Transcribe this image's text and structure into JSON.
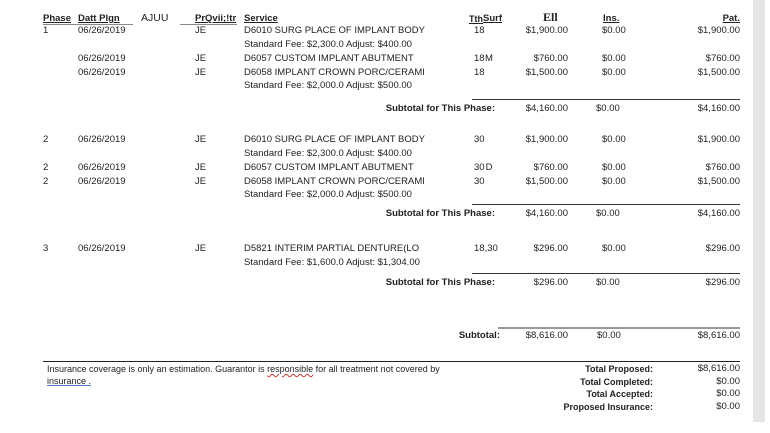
{
  "header": {
    "phase": "Phase",
    "date": "Datt Plgn",
    "extra": "AJUU",
    "provider": "PrQvii;!tr",
    "service": "Service",
    "tooth": "Tth",
    "surf": "Surf",
    "fee": "Ell",
    "ins": "Ins.",
    "pat": "Pat."
  },
  "phases": [
    {
      "rows": [
        {
          "phase": "1",
          "date": "06/26/2019",
          "prov": "JE",
          "service": "D6010 SURG PLACE OF IMPLANT BODY",
          "tooth": "18",
          "surf": "",
          "fee": "$1,900.00",
          "ins": "$0.00",
          "pat": "$1,900.00",
          "note": "Standard Fee: $2,300.0 Adjust: $400.00"
        },
        {
          "phase": "",
          "date": "06/26/2019",
          "prov": "JE",
          "service": "D6057 CUSTOM IMPLANT ABUTMENT",
          "tooth": "18",
          "surf": "M",
          "fee": "$760.00",
          "ins": "$0.00",
          "pat": "$760.00",
          "note": ""
        },
        {
          "phase": "",
          "date": "06/26/2019",
          "prov": "JE",
          "service": "D6058 IMPLANT CROWN PORC/CERAMI",
          "tooth": "18",
          "surf": "",
          "fee": "$1,500.00",
          "ins": "$0.00",
          "pat": "$1,500.00",
          "note": "Standard Fee: $2,000.0 Adjust: $500.00"
        }
      ],
      "subtotal_label": "Subtotal for This Phase:",
      "subtotal": {
        "fee": "$4,160.00",
        "ins": "$0.00",
        "pat": "$4,160.00"
      }
    },
    {
      "rows": [
        {
          "phase": "2",
          "date": "06/26/2019",
          "prov": "JE",
          "service": "D6010 SURG PLACE OF IMPLANT BODY",
          "tooth": "30",
          "surf": "",
          "fee": "$1,900.00",
          "ins": "$0.00",
          "pat": "$1,900.00",
          "note": "Standard Fee: $2,300.0 Adjust: $400.00"
        },
        {
          "phase": "2",
          "date": "06/26/2019",
          "prov": "JE",
          "service": "D6057 CUSTOM IMPLANT ABUTMENT",
          "tooth": "30",
          "surf": "D",
          "fee": "$760.00",
          "ins": "$0.00",
          "pat": "$760.00",
          "note": ""
        },
        {
          "phase": "2",
          "date": "06/26/2019",
          "prov": "JE",
          "service": "D6058 IMPLANT CROWN PORC/CERAMI",
          "tooth": "30",
          "surf": "",
          "fee": "$1,500.00",
          "ins": "$0.00",
          "pat": "$1,500.00",
          "note": "Standard Fee: $2,000.0 Adjust: $500.00"
        }
      ],
      "subtotal_label": "Subtotal for This Phase:",
      "subtotal": {
        "fee": "$4,160.00",
        "ins": "$0.00",
        "pat": "$4,160.00"
      }
    },
    {
      "rows": [
        {
          "phase": "3",
          "date": "06/26/2019",
          "prov": "JE",
          "service": "D5821  INTERIM PARTIAL DENTURE(LO",
          "tooth": "18,30",
          "surf": "",
          "fee": "$296.00",
          "ins": "$0.00",
          "pat": "$296.00",
          "note": "Standard Fee: $1,600.0 Adjust: $1,304.00"
        }
      ],
      "subtotal_label": "Subtotal for This Phase:",
      "subtotal": {
        "fee": "$296.00",
        "ins": "$0.00",
        "pat": "$296.00"
      }
    }
  ],
  "grand": {
    "label": "Subtotal:",
    "fee": "$8,616.00",
    "ins": "$0.00",
    "pat": "$8,616.00"
  },
  "footer": {
    "note_a": "Insurance coverage is only an estimation. Guarantor is ",
    "note_word": "responsible",
    "note_b": " for all treatment not covered by",
    "note_c": "insurance .",
    "totals": [
      {
        "label": "Total Proposed:",
        "value": "$8,616.00"
      },
      {
        "label": "Total Completed:",
        "value": "$0.00"
      },
      {
        "label": "Total Accepted:",
        "value": "$0.00"
      },
      {
        "label": "Proposed Insurance:",
        "value": "$0.00"
      }
    ]
  }
}
